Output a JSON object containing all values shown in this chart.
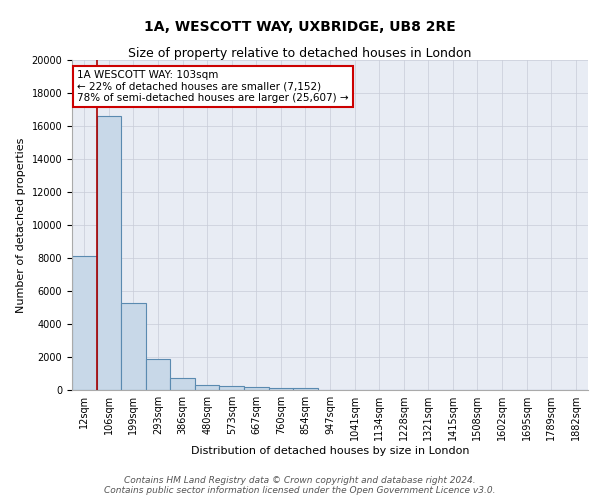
{
  "title_line1": "1A, WESCOTT WAY, UXBRIDGE, UB8 2RE",
  "title_line2": "Size of property relative to detached houses in London",
  "xlabel": "Distribution of detached houses by size in London",
  "ylabel": "Number of detached properties",
  "bar_labels": [
    "12sqm",
    "106sqm",
    "199sqm",
    "293sqm",
    "386sqm",
    "480sqm",
    "573sqm",
    "667sqm",
    "760sqm",
    "854sqm",
    "947sqm",
    "1041sqm",
    "1134sqm",
    "1228sqm",
    "1321sqm",
    "1415sqm",
    "1508sqm",
    "1602sqm",
    "1695sqm",
    "1789sqm",
    "1882sqm"
  ],
  "bar_values": [
    8100,
    16600,
    5300,
    1850,
    700,
    300,
    220,
    180,
    150,
    120,
    0,
    0,
    0,
    0,
    0,
    0,
    0,
    0,
    0,
    0,
    0
  ],
  "bar_color": "#c8d8e8",
  "bar_edge_color": "#5a8ab0",
  "bar_linewidth": 0.8,
  "vline_x": 1.0,
  "vline_color": "#aa0000",
  "vline_linewidth": 1.2,
  "annotation_text": "1A WESCOTT WAY: 103sqm\n← 22% of detached houses are smaller (7,152)\n78% of semi-detached houses are larger (25,607) →",
  "annotation_box_color": "#ffffff",
  "annotation_box_edge": "#cc0000",
  "ylim": [
    0,
    20000
  ],
  "yticks": [
    0,
    2000,
    4000,
    6000,
    8000,
    10000,
    12000,
    14000,
    16000,
    18000,
    20000
  ],
  "grid_color": "#c8ccd8",
  "bg_color": "#e8ecf4",
  "footnote": "Contains HM Land Registry data © Crown copyright and database right 2024.\nContains public sector information licensed under the Open Government Licence v3.0.",
  "title_fontsize": 10,
  "subtitle_fontsize": 9,
  "ylabel_fontsize": 8,
  "xlabel_fontsize": 8,
  "tick_fontsize": 7,
  "annotation_fontsize": 7.5,
  "footnote_fontsize": 6.5
}
